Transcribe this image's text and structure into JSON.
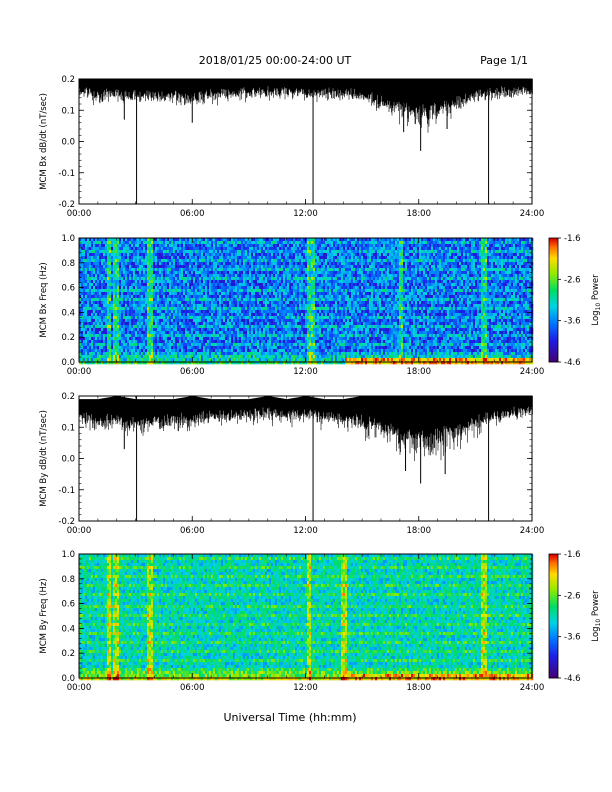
{
  "header": {
    "title": "2018/01/25  00:00-24:00 UT",
    "page": "Page 1/1"
  },
  "xaxis_label": "Universal Time (hh:mm)",
  "chart_data": [
    {
      "type": "line",
      "id": "bx-line",
      "ylabel": "MCM Bx dB/dt (nT/sec)",
      "xlim": [
        0,
        24
      ],
      "ylim": [
        -0.2,
        0.2
      ],
      "xticks": [
        "00:00",
        "06:00",
        "12:00",
        "18:00",
        "24:00"
      ],
      "yticks": [
        "-0.2",
        "-0.1",
        "0.0",
        "0.1",
        "0.2"
      ],
      "series": [
        {
          "upper_envelope": {
            "x": [
              0,
              24
            ],
            "y": [
              0.2,
              0.2
            ]
          },
          "lower_envelope": {
            "x": [
              0,
              1,
              2,
              3,
              4,
              5,
              6,
              7,
              8,
              9,
              10,
              11,
              12,
              13,
              14,
              15,
              16,
              17,
              18,
              19,
              20,
              21,
              22,
              23,
              24
            ],
            "y": [
              0.15,
              0.13,
              0.14,
              0.12,
              0.13,
              0.12,
              0.11,
              0.14,
              0.14,
              0.15,
              0.15,
              0.15,
              0.14,
              0.15,
              0.14,
              0.13,
              0.1,
              0.06,
              0.03,
              0.05,
              0.08,
              0.13,
              0.15,
              0.15,
              0.16
            ]
          },
          "spikes": [
            {
              "x": 3.05,
              "y": -0.2
            },
            {
              "x": 12.4,
              "y": -0.2
            },
            {
              "x": 21.7,
              "y": -0.2
            },
            {
              "x": 18.1,
              "y": -0.03
            },
            {
              "x": 6.0,
              "y": 0.06
            },
            {
              "x": 2.4,
              "y": 0.07
            },
            {
              "x": 17.2,
              "y": 0.03
            },
            {
              "x": 19.5,
              "y": 0.04
            }
          ]
        }
      ]
    },
    {
      "type": "heatmap",
      "id": "bx-spec",
      "ylabel": "MCM Bx Freq (Hz)",
      "xlim": [
        0,
        24
      ],
      "ylim": [
        0,
        1.0
      ],
      "xticks": [
        "00:00",
        "06:00",
        "12:00",
        "18:00",
        "24:00"
      ],
      "yticks": [
        "0.0",
        "0.2",
        "0.4",
        "0.6",
        "0.8",
        "1.0"
      ],
      "colorbar": {
        "label": "Log10 Power",
        "range": [
          -4.6,
          -1.6
        ],
        "ticks": [
          "-1.6",
          "-2.6",
          "-3.6",
          "-4.6"
        ]
      },
      "bright_columns": [
        1.5,
        1.9,
        3.7,
        12.1,
        12.3,
        17.0,
        21.4
      ],
      "low_freq_enhancement": {
        "x": [
          14,
          24
        ],
        "level": -1.9
      }
    },
    {
      "type": "line",
      "id": "by-line",
      "ylabel": "MCM By dB/dt (nT/sec)",
      "xlim": [
        0,
        24
      ],
      "ylim": [
        -0.2,
        0.2
      ],
      "xticks": [
        "00:00",
        "06:00",
        "12:00",
        "18:00",
        "24:00"
      ],
      "yticks": [
        "-0.2",
        "-0.1",
        "0.0",
        "0.1",
        "0.2"
      ],
      "series": [
        {
          "upper_envelope": {
            "x": [
              0,
              1,
              2,
              3,
              4,
              5,
              6,
              7,
              8,
              9,
              10,
              11,
              12,
              13,
              14,
              15,
              16,
              17,
              18,
              19,
              20,
              21,
              22,
              23,
              24
            ],
            "y": [
              0.19,
              0.19,
              0.2,
              0.19,
              0.19,
              0.19,
              0.2,
              0.19,
              0.19,
              0.19,
              0.2,
              0.19,
              0.2,
              0.19,
              0.19,
              0.2,
              0.2,
              0.2,
              0.2,
              0.2,
              0.2,
              0.2,
              0.2,
              0.2,
              0.2
            ]
          },
          "lower_envelope": {
            "x": [
              0,
              1,
              2,
              3,
              4,
              5,
              6,
              7,
              8,
              9,
              10,
              11,
              12,
              13,
              14,
              15,
              16,
              17,
              18,
              19,
              20,
              21,
              22,
              23,
              24
            ],
            "y": [
              0.12,
              0.08,
              0.09,
              0.07,
              0.1,
              0.09,
              0.09,
              0.12,
              0.12,
              0.12,
              0.13,
              0.12,
              0.12,
              0.11,
              0.1,
              0.08,
              0.04,
              0.0,
              -0.03,
              -0.02,
              0.02,
              0.07,
              0.11,
              0.13,
              0.14
            ]
          },
          "spikes": [
            {
              "x": 3.05,
              "y": -0.2
            },
            {
              "x": 12.4,
              "y": -0.2
            },
            {
              "x": 21.7,
              "y": -0.2
            },
            {
              "x": 18.1,
              "y": -0.08
            },
            {
              "x": 2.4,
              "y": 0.03
            },
            {
              "x": 17.3,
              "y": -0.04
            },
            {
              "x": 19.4,
              "y": -0.05
            }
          ]
        }
      ]
    },
    {
      "type": "heatmap",
      "id": "by-spec",
      "ylabel": "MCM By Freq (Hz)",
      "xlim": [
        0,
        24
      ],
      "ylim": [
        0,
        1.0
      ],
      "xticks": [
        "00:00",
        "06:00",
        "12:00",
        "18:00",
        "24:00"
      ],
      "yticks": [
        "0.0",
        "0.2",
        "0.4",
        "0.6",
        "0.8",
        "1.0"
      ],
      "colorbar": {
        "label": "Log10 Power",
        "range": [
          -4.6,
          -1.6
        ],
        "ticks": [
          "-1.6",
          "-2.6",
          "-3.6",
          "-4.6"
        ]
      },
      "bright_columns": [
        1.5,
        1.9,
        3.7,
        12.1,
        14.0,
        21.4
      ],
      "low_freq_enhancement": {
        "x": [
          14,
          24
        ],
        "level": -1.9
      }
    }
  ]
}
